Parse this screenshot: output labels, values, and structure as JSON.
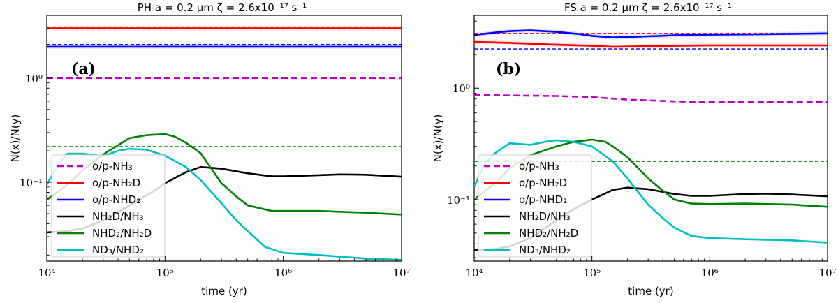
{
  "chart_data": [
    {
      "type": "line",
      "title": "PH  a = 0.2 μm  ζ = 2.6x10⁻¹⁷ s⁻¹",
      "panel_label": "(a)",
      "xlabel": "time (yr)",
      "ylabel": "N(x)/N(y)",
      "xscale": "log",
      "yscale": "log",
      "xlim": [
        10000,
        10000000
      ],
      "ylim": [
        0.0175,
        4.0
      ],
      "x_ticks": [
        {
          "value": 10000,
          "label": "10⁴"
        },
        {
          "value": 100000,
          "label": "10⁵"
        },
        {
          "value": 1000000,
          "label": "10⁶"
        },
        {
          "value": 10000000,
          "label": "10⁷"
        }
      ],
      "y_ticks": [
        {
          "value": 0.1,
          "label": "10⁻¹"
        },
        {
          "value": 1,
          "label": "10⁰"
        }
      ],
      "legend": {
        "placement": "lower-left"
      },
      "series": [
        {
          "name": "o/p-NH₃",
          "color": "#bf00bf",
          "style": "dashed",
          "x": [
            10000,
            10000000
          ],
          "y": [
            1.0,
            1.0
          ]
        },
        {
          "name": "o/p-NH₂D",
          "color": "#ff0000",
          "style": "solid",
          "x": [
            10000,
            10000000
          ],
          "y": [
            3.0,
            3.0
          ]
        },
        {
          "name": "o/p-NHD₂",
          "color": "#0000ff",
          "style": "solid",
          "x": [
            10000,
            10000000
          ],
          "y": [
            2.0,
            2.0
          ]
        },
        {
          "name": "NH₂D/NH₃",
          "color": "#000000",
          "style": "solid",
          "x": [
            10000,
            15000,
            20000,
            30000,
            50000,
            80000,
            100000,
            150000,
            200000,
            300000,
            500000,
            800000,
            1000000,
            2000000,
            3000000,
            5000000,
            10000000
          ],
          "y": [
            0.033,
            0.034,
            0.036,
            0.043,
            0.06,
            0.082,
            0.098,
            0.125,
            0.14,
            0.135,
            0.122,
            0.114,
            0.114,
            0.117,
            0.119,
            0.118,
            0.113
          ]
        },
        {
          "name": "NHD₂/NH₂D",
          "color": "#008000",
          "style": "solid",
          "x": [
            10000,
            15000,
            20000,
            30000,
            50000,
            70000,
            100000,
            120000,
            150000,
            200000,
            300000,
            400000,
            500000,
            800000,
            1000000,
            2000000,
            5000000,
            10000000
          ],
          "y": [
            0.068,
            0.095,
            0.13,
            0.185,
            0.265,
            0.283,
            0.29,
            0.275,
            0.24,
            0.19,
            0.098,
            0.073,
            0.06,
            0.053,
            0.053,
            0.053,
            0.051,
            0.049
          ]
        },
        {
          "name": "ND₃/NHD₂",
          "color": "#00bfbf",
          "style": "solid",
          "x": [
            10000,
            13000,
            15000,
            20000,
            30000,
            40000,
            50000,
            70000,
            100000,
            150000,
            200000,
            300000,
            400000,
            500000,
            700000,
            1000000,
            2000000,
            5000000,
            10000000
          ],
          "y": [
            0.095,
            0.16,
            0.188,
            0.188,
            0.178,
            0.2,
            0.21,
            0.205,
            0.18,
            0.14,
            0.105,
            0.063,
            0.043,
            0.034,
            0.024,
            0.021,
            0.02,
            0.0185,
            0.018
          ]
        }
      ],
      "reference_lines": [
        {
          "color": "#ff0000",
          "style": "dashed",
          "y": 3.1
        },
        {
          "color": "#0000ff",
          "style": "dashed",
          "y": 2.1
        },
        {
          "color": "#008000",
          "style": "dashed",
          "y": 0.22
        }
      ]
    },
    {
      "type": "line",
      "title": "FS  a = 0.2 μm  ζ = 2.6x10⁻¹⁷ s⁻¹",
      "panel_label": "(b)",
      "xlabel": "time (yr)",
      "ylabel": "N(x)/N(y)",
      "xscale": "log",
      "yscale": "log",
      "xlim": [
        10000,
        10000000
      ],
      "ylim": [
        0.028,
        4.5
      ],
      "x_ticks": [
        {
          "value": 10000,
          "label": "10⁴"
        },
        {
          "value": 100000,
          "label": "10⁵"
        },
        {
          "value": 1000000,
          "label": "10⁶"
        },
        {
          "value": 10000000,
          "label": "10⁷"
        }
      ],
      "y_ticks": [
        {
          "value": 0.1,
          "label": "10⁻¹"
        },
        {
          "value": 1,
          "label": "10⁰"
        }
      ],
      "legend": {
        "placement": "lower-left"
      },
      "series": [
        {
          "name": "o/p-NH₃",
          "color": "#bf00bf",
          "style": "dashed",
          "x": [
            10000,
            20000,
            50000,
            100000,
            200000,
            500000,
            1000000,
            3000000,
            10000000
          ],
          "y": [
            0.87,
            0.86,
            0.85,
            0.83,
            0.79,
            0.76,
            0.75,
            0.75,
            0.75
          ]
        },
        {
          "name": "o/p-NH₂D",
          "color": "#ff0000",
          "style": "solid",
          "x": [
            10000,
            20000,
            50000,
            100000,
            150000,
            200000,
            300000,
            500000,
            1000000,
            3000000,
            10000000
          ],
          "y": [
            2.6,
            2.55,
            2.45,
            2.4,
            2.35,
            2.36,
            2.38,
            2.4,
            2.42,
            2.42,
            2.42
          ]
        },
        {
          "name": "o/p-NHD₂",
          "color": "#0000ff",
          "style": "solid",
          "x": [
            10000,
            15000,
            20000,
            30000,
            50000,
            80000,
            100000,
            150000,
            200000,
            300000,
            500000,
            1000000,
            3000000,
            10000000
          ],
          "y": [
            3.0,
            3.15,
            3.25,
            3.3,
            3.2,
            3.05,
            2.95,
            2.85,
            2.88,
            2.92,
            2.98,
            3.02,
            3.05,
            3.1
          ]
        },
        {
          "name": "NH₂D/NH₃",
          "color": "#000000",
          "style": "solid",
          "x": [
            10000,
            15000,
            20000,
            30000,
            50000,
            70000,
            100000,
            150000,
            200000,
            300000,
            500000,
            700000,
            1000000,
            2000000,
            3000000,
            5000000,
            10000000
          ],
          "y": [
            0.035,
            0.036,
            0.038,
            0.045,
            0.065,
            0.082,
            0.1,
            0.122,
            0.128,
            0.124,
            0.112,
            0.108,
            0.108,
            0.112,
            0.113,
            0.111,
            0.107
          ]
        },
        {
          "name": "NHD₂/NH₂D",
          "color": "#008000",
          "style": "solid",
          "x": [
            10000,
            15000,
            20000,
            30000,
            50000,
            70000,
            100000,
            130000,
            150000,
            200000,
            300000,
            400000,
            500000,
            700000,
            1000000,
            2000000,
            5000000,
            10000000
          ],
          "y": [
            0.1,
            0.14,
            0.19,
            0.25,
            0.3,
            0.33,
            0.345,
            0.33,
            0.3,
            0.24,
            0.155,
            0.12,
            0.1,
            0.092,
            0.091,
            0.092,
            0.09,
            0.086
          ]
        },
        {
          "name": "ND₃/NHD₂",
          "color": "#00bfbf",
          "style": "solid",
          "x": [
            10000,
            12000,
            15000,
            20000,
            30000,
            40000,
            50000,
            70000,
            100000,
            150000,
            200000,
            300000,
            400000,
            500000,
            700000,
            1000000,
            2000000,
            5000000,
            10000000
          ],
          "y": [
            0.13,
            0.2,
            0.26,
            0.32,
            0.31,
            0.33,
            0.34,
            0.33,
            0.3,
            0.22,
            0.155,
            0.09,
            0.068,
            0.056,
            0.047,
            0.045,
            0.044,
            0.043,
            0.041
          ]
        }
      ],
      "reference_lines": [
        {
          "color": "#ff0000",
          "style": "dashed",
          "y": 3.1
        },
        {
          "color": "#0000ff",
          "style": "dashed",
          "y": 2.25
        },
        {
          "color": "#008000",
          "style": "dashed",
          "y": 0.22
        }
      ]
    }
  ]
}
